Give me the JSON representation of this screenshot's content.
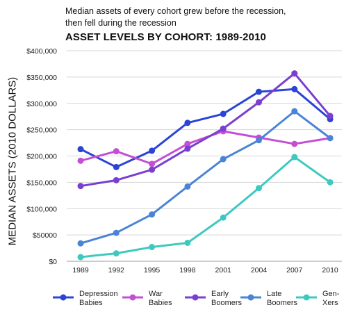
{
  "subtitle": "Median assets of every cohort grew before the recession,\nthen fell during the recession",
  "title": "ASSET LEVELS BY COHORT: 1989-2010",
  "chart_data": {
    "type": "line",
    "title": "ASSET LEVELS BY COHORT: 1989-2010",
    "ylabel": "MEDIAN ASSETS (2010 DOLLARS)",
    "xlabel": "",
    "categories": [
      "1989",
      "1992",
      "1995",
      "1998",
      "2001",
      "2004",
      "2007",
      "2010"
    ],
    "ylim": [
      0,
      400000
    ],
    "y_ticks": [
      0,
      50000,
      100000,
      150000,
      200000,
      250000,
      300000,
      350000,
      400000
    ],
    "y_tick_labels": [
      "$0",
      "$50000",
      "$100,000",
      "$150,000",
      "$200,000",
      "$250,000",
      "$300,000",
      "$350,000",
      "$400,000"
    ],
    "grid": "horizontal",
    "legend_position": "bottom",
    "series": [
      {
        "name": "Depression\nBabies",
        "color": "#2b44d6",
        "values": [
          213000,
          179000,
          210000,
          263000,
          280000,
          322000,
          327000,
          270000
        ]
      },
      {
        "name": "War\nBabies",
        "color": "#c44fd4",
        "values": [
          191000,
          209000,
          185000,
          223000,
          247000,
          235000,
          223000,
          234000
        ]
      },
      {
        "name": "Early\nBoomers",
        "color": "#7a3fd0",
        "values": [
          143000,
          154000,
          174000,
          214000,
          252000,
          302000,
          357000,
          276000
        ]
      },
      {
        "name": "Late\nBoomers",
        "color": "#4a84d6",
        "values": [
          34000,
          54000,
          89000,
          142000,
          194000,
          230000,
          285000,
          234000
        ]
      },
      {
        "name": "Gen-Xers",
        "color": "#3ec9c0",
        "values": [
          8000,
          15000,
          27000,
          35000,
          83000,
          139000,
          198000,
          150000
        ]
      }
    ]
  }
}
